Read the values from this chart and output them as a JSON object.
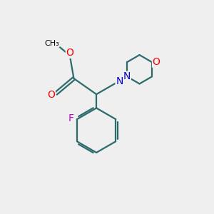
{
  "bg_color": "#efefef",
  "bond_color": "#2d6b6b",
  "bond_lw": 1.6,
  "atom_colors": {
    "O": "#ff0000",
    "N": "#0000cc",
    "F": "#cc00cc",
    "C": "#000000"
  },
  "font_size": 9,
  "figsize": [
    3.0,
    3.0
  ],
  "dpi": 100
}
